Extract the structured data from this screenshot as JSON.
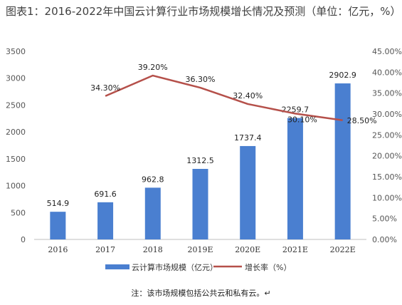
{
  "title": "图表1：2016-2022年中国云计算行业市场规模增长情况及预测（单位：亿元，%）",
  "note": "注：该市场规模包括公共云和私有云。↵",
  "colors": {
    "bar": "#4a7fd0",
    "line": "#b5504a",
    "axis_text": "#555555"
  },
  "chart_data": {
    "type": "bar+line",
    "categories": [
      "2016",
      "2017",
      "2018",
      "2019E",
      "2020E",
      "2021E",
      "2022E"
    ],
    "series": [
      {
        "name": "云计算市场规模（亿元）",
        "type": "bar",
        "axis": "left",
        "values": [
          514.9,
          691.6,
          962.8,
          1312.5,
          1737.4,
          2259.7,
          2902.9
        ],
        "labels": [
          "514.9",
          "691.6",
          "962.8",
          "1312.5",
          "1737.4",
          "2259.7",
          "2902.9"
        ]
      },
      {
        "name": "增长率（%）",
        "type": "line",
        "axis": "right",
        "values": [
          null,
          34.3,
          39.2,
          36.3,
          32.4,
          30.1,
          28.5
        ],
        "labels": [
          null,
          "34.30%",
          "39.20%",
          "36.30%",
          "32.40%",
          "30.10%",
          "28.50%"
        ]
      }
    ],
    "ylim_left": [
      0,
      3500
    ],
    "yticks_left": [
      "0",
      "500",
      "1000",
      "1500",
      "2000",
      "2500",
      "3000",
      "3500"
    ],
    "ylim_right": [
      0,
      45
    ],
    "yticks_right": [
      "0.00%",
      "5.00%",
      "10.00%",
      "15.00%",
      "20.00%",
      "25.00%",
      "30.00%",
      "35.00%",
      "40.00%",
      "45.00%"
    ],
    "grid": false,
    "legend_position": "bottom"
  }
}
